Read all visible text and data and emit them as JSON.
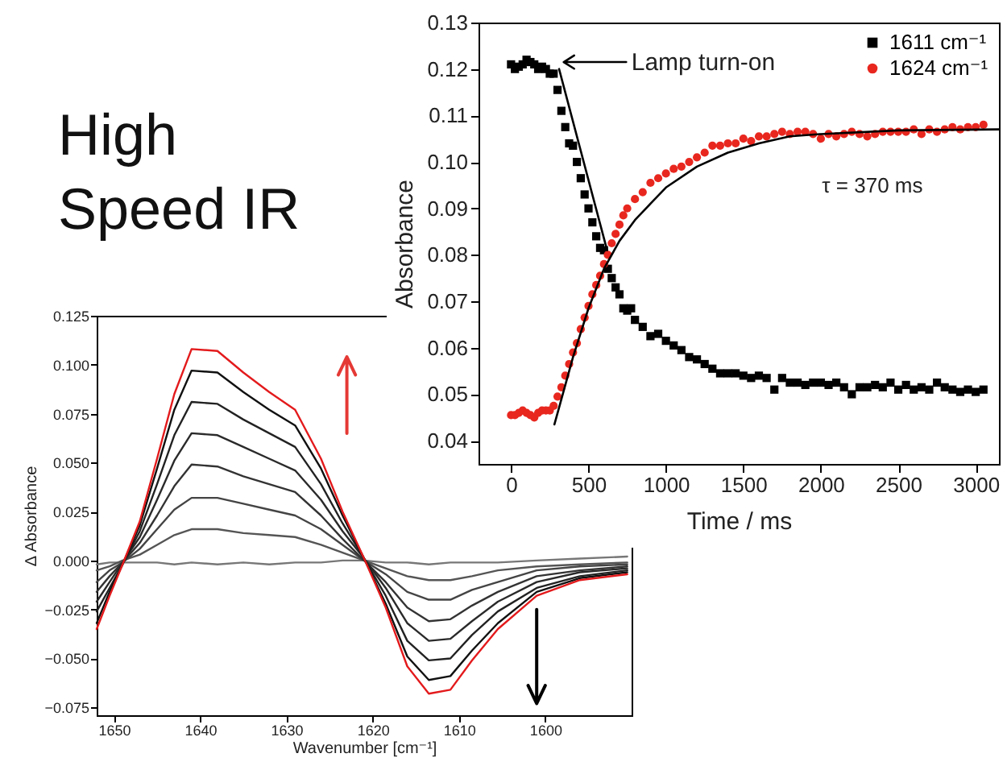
{
  "chart_data": [
    {
      "type": "scatter",
      "xlabel": "Time / ms",
      "ylabel": "Absorbance",
      "xlim": [
        -210,
        3150
      ],
      "xticks": [
        0,
        500,
        1000,
        1500,
        2000,
        2500,
        3000
      ],
      "ylim": [
        0.035,
        0.13
      ],
      "yticks": [
        0.04,
        0.05,
        0.06,
        0.07,
        0.08,
        0.09,
        {
          "value": 0.1,
          "label": "0.10"
        },
        0.11,
        0.12,
        0.13
      ],
      "grid": false,
      "legend": "top right",
      "annotations": [
        {
          "text": "Lamp turn-on",
          "x": 330,
          "y": 0.1215
        },
        "τ = 370 ms"
      ],
      "series": [
        {
          "name": "1611 cm⁻¹",
          "color": "#000000",
          "marker": "square",
          "x": [
            0,
            25,
            50,
            75,
            100,
            125,
            150,
            175,
            200,
            225,
            250,
            275,
            300,
            325,
            350,
            375,
            400,
            425,
            450,
            475,
            500,
            525,
            550,
            575,
            600,
            625,
            650,
            675,
            700,
            725,
            750,
            775,
            800,
            850,
            900,
            950,
            1000,
            1050,
            1100,
            1150,
            1200,
            1250,
            1300,
            1350,
            1400,
            1450,
            1500,
            1550,
            1600,
            1650,
            1700,
            1750,
            1800,
            1850,
            1900,
            1950,
            2000,
            2050,
            2100,
            2150,
            2200,
            2250,
            2300,
            2350,
            2400,
            2450,
            2500,
            2550,
            2600,
            2650,
            2700,
            2750,
            2800,
            2850,
            2900,
            2950,
            3000,
            3050
          ],
          "values": [
            0.121,
            0.12,
            0.1205,
            0.121,
            0.122,
            0.1215,
            0.121,
            0.12,
            0.1205,
            0.12,
            0.119,
            0.119,
            0.1155,
            0.111,
            0.1075,
            0.104,
            0.1035,
            0.1,
            0.0965,
            0.093,
            0.09,
            0.087,
            0.084,
            0.0815,
            0.081,
            0.077,
            0.075,
            0.073,
            0.0715,
            0.0685,
            0.068,
            0.0685,
            0.066,
            0.0645,
            0.0625,
            0.063,
            0.0615,
            0.0605,
            0.0595,
            0.058,
            0.0575,
            0.0565,
            0.0555,
            0.0545,
            0.0545,
            0.0545,
            0.054,
            0.0535,
            0.054,
            0.0535,
            0.051,
            0.0535,
            0.0525,
            0.0525,
            0.052,
            0.0525,
            0.0525,
            0.052,
            0.0525,
            0.0515,
            0.05,
            0.0515,
            0.0515,
            0.052,
            0.0515,
            0.0525,
            0.051,
            0.052,
            0.051,
            0.0515,
            0.051,
            0.0525,
            0.0515,
            0.051,
            0.0505,
            0.051,
            0.0505,
            0.051
          ]
        },
        {
          "name": "1624 cm⁻¹",
          "color": "#e8271f",
          "marker": "circle",
          "x": [
            0,
            25,
            50,
            75,
            100,
            125,
            150,
            175,
            200,
            225,
            250,
            275,
            300,
            325,
            350,
            375,
            400,
            425,
            450,
            475,
            500,
            525,
            550,
            575,
            600,
            625,
            650,
            675,
            700,
            725,
            750,
            800,
            850,
            900,
            950,
            1000,
            1050,
            1100,
            1150,
            1200,
            1250,
            1300,
            1350,
            1400,
            1450,
            1500,
            1550,
            1600,
            1650,
            1700,
            1750,
            1800,
            1850,
            1900,
            1950,
            2000,
            2050,
            2100,
            2150,
            2200,
            2250,
            2300,
            2350,
            2400,
            2450,
            2500,
            2550,
            2600,
            2650,
            2700,
            2750,
            2800,
            2850,
            2900,
            2950,
            3000,
            3050
          ],
          "values": [
            0.0455,
            0.0455,
            0.046,
            0.0465,
            0.046,
            0.0455,
            0.045,
            0.046,
            0.0465,
            0.0465,
            0.0465,
            0.0475,
            0.0495,
            0.0515,
            0.054,
            0.0565,
            0.059,
            0.061,
            0.064,
            0.0665,
            0.069,
            0.0715,
            0.0735,
            0.0755,
            0.078,
            0.08,
            0.0825,
            0.0845,
            0.0865,
            0.0885,
            0.09,
            0.092,
            0.0935,
            0.0955,
            0.0965,
            0.0975,
            0.0985,
            0.099,
            0.1,
            0.101,
            0.102,
            0.1035,
            0.1035,
            0.104,
            0.104,
            0.105,
            0.1045,
            0.1055,
            0.1055,
            0.106,
            0.1065,
            0.106,
            0.1065,
            0.1065,
            0.106,
            0.105,
            0.106,
            0.1055,
            0.106,
            0.1065,
            0.106,
            0.1055,
            0.106,
            0.1065,
            0.1065,
            0.1065,
            0.1065,
            0.107,
            0.106,
            0.107,
            0.1065,
            0.107,
            0.1075,
            0.107,
            0.1075,
            0.1075,
            0.108
          ]
        },
        {
          "type": "line",
          "color": "#000000",
          "x": [
            280,
            400,
            500,
            600,
            700,
            800,
            900,
            1000,
            1200,
            1400,
            1600,
            1800,
            2000,
            2500,
            3150
          ],
          "values": [
            0.0435,
            0.058,
            0.0685,
            0.077,
            0.083,
            0.0875,
            0.091,
            0.0945,
            0.099,
            0.102,
            0.104,
            0.1055,
            0.106,
            0.1068,
            0.107
          ]
        },
        {
          "type": "line",
          "color": "#000000",
          "x": [
            310,
            620
          ],
          "values": [
            0.12,
            0.081
          ]
        }
      ]
    },
    {
      "type": "line",
      "title": "High Speed IR",
      "xlabel": "Wavenumber [cm⁻¹]",
      "ylabel": "Δ Absorbance",
      "xlim": [
        1652,
        1590
      ],
      "xticks": [
        1650,
        1640,
        1630,
        1620,
        1610,
        1600
      ],
      "ylim": [
        -0.079,
        0.125
      ],
      "yticks": [
        0.125,
        {
          "value": 0.1,
          "label": "0.100"
        },
        0.075,
        {
          "value": 0.05,
          "label": "0.050"
        },
        0.025,
        {
          "value": 0,
          "label": "0.000"
        },
        {
          "value": -0.025,
          "label": "−0.025"
        },
        {
          "value": -0.05,
          "label": "−0.050"
        },
        {
          "value": -0.075,
          "label": "−0.075"
        }
      ],
      "grid": false,
      "x": [
        1652,
        1650.5,
        1649,
        1647,
        1645,
        1643,
        1641,
        1638,
        1635,
        1632,
        1629,
        1626,
        1623.5,
        1621,
        1618.5,
        1616,
        1613.5,
        1611,
        1608.5,
        1605.5,
        1601,
        1596,
        1590.5
      ],
      "series": [
        {
          "color": "#777777",
          "values": [
            -0.002,
            -0.001,
            -0.001,
            -0.001,
            -0.001,
            -0.002,
            -0.001,
            -0.002,
            -0.001,
            -0.002,
            -0.001,
            -0.001,
            0,
            0,
            -0.001,
            -0.001,
            -0.002,
            -0.001,
            -0.001,
            -0.001,
            0,
            0.001,
            0.002
          ]
        },
        {
          "color": "#555555",
          "values": [
            -0.005,
            -0.003,
            0,
            0.003,
            0.008,
            0.013,
            0.016,
            0.016,
            0.014,
            0.013,
            0.012,
            0.008,
            0.004,
            0,
            -0.004,
            -0.008,
            -0.01,
            -0.01,
            -0.008,
            -0.005,
            -0.003,
            -0.002,
            -0.001
          ]
        },
        {
          "color": "#444444",
          "values": [
            -0.011,
            -0.005,
            -0.001,
            0.006,
            0.016,
            0.026,
            0.032,
            0.032,
            0.029,
            0.026,
            0.023,
            0.016,
            0.008,
            0,
            -0.007,
            -0.016,
            -0.02,
            -0.02,
            -0.015,
            -0.011,
            -0.005,
            -0.003,
            -0.002
          ]
        },
        {
          "color": "#333333",
          "values": [
            -0.016,
            -0.008,
            -0.001,
            0.009,
            0.023,
            0.038,
            0.049,
            0.048,
            0.043,
            0.039,
            0.035,
            0.023,
            0.011,
            0,
            -0.011,
            -0.024,
            -0.031,
            -0.03,
            -0.023,
            -0.016,
            -0.008,
            -0.005,
            -0.003
          ]
        },
        {
          "color": "#2a2a2a",
          "values": [
            -0.021,
            -0.011,
            -0.001,
            0.012,
            0.031,
            0.051,
            0.065,
            0.064,
            0.058,
            0.052,
            0.046,
            0.031,
            0.015,
            0.001,
            -0.014,
            -0.032,
            -0.041,
            -0.04,
            -0.031,
            -0.021,
            -0.011,
            -0.006,
            -0.004
          ]
        },
        {
          "color": "#222222",
          "values": [
            -0.026,
            -0.014,
            -0.002,
            0.015,
            0.039,
            0.064,
            0.081,
            0.08,
            0.072,
            0.065,
            0.058,
            0.039,
            0.019,
            0.001,
            -0.018,
            -0.041,
            -0.051,
            -0.05,
            -0.038,
            -0.026,
            -0.014,
            -0.008,
            -0.005
          ]
        },
        {
          "color": "#111111",
          "values": [
            -0.032,
            -0.016,
            -0.002,
            0.018,
            0.047,
            0.077,
            0.097,
            0.096,
            0.086,
            0.077,
            0.069,
            0.047,
            0.023,
            0.001,
            -0.022,
            -0.049,
            -0.061,
            -0.059,
            -0.046,
            -0.032,
            -0.016,
            -0.009,
            -0.006
          ]
        },
        {
          "color": "#e31a1c",
          "values": [
            -0.035,
            -0.018,
            -0.002,
            0.02,
            0.052,
            0.085,
            0.108,
            0.107,
            0.096,
            0.086,
            0.077,
            0.052,
            0.025,
            0.001,
            -0.024,
            -0.054,
            -0.068,
            -0.066,
            -0.051,
            -0.035,
            -0.018,
            -0.01,
            -0.007
          ]
        }
      ]
    }
  ]
}
